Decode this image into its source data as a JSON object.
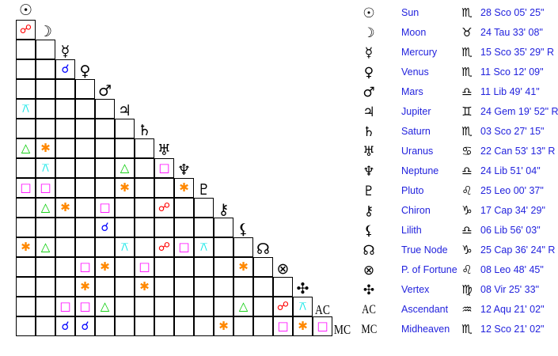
{
  "bodies": [
    {
      "name": "Sun",
      "symbol": "☉",
      "sign": "♏",
      "position": "28 Sco 05' 25\""
    },
    {
      "name": "Moon",
      "symbol": "☽",
      "sign": "♉",
      "position": "24 Tau 33' 08\""
    },
    {
      "name": "Mercury",
      "symbol": "☿",
      "sign": "♏",
      "position": "15 Sco 35' 29\" R"
    },
    {
      "name": "Venus",
      "symbol": "♀",
      "sign": "♏",
      "position": "11 Sco 12' 09\""
    },
    {
      "name": "Mars",
      "symbol": "♂",
      "sign": "♎",
      "position": "11 Lib 49' 41\""
    },
    {
      "name": "Jupiter",
      "symbol": "♃",
      "sign": "♊",
      "position": "24 Gem 19' 52\" R"
    },
    {
      "name": "Saturn",
      "symbol": "♄",
      "sign": "♏",
      "position": "03 Sco 27' 15\""
    },
    {
      "name": "Uranus",
      "symbol": "♅",
      "sign": "♋",
      "position": "22 Can 53' 13\" R"
    },
    {
      "name": "Neptune",
      "symbol": "♆",
      "sign": "♎",
      "position": "24 Lib 51' 04\""
    },
    {
      "name": "Pluto",
      "symbol": "♇",
      "sign": "♌",
      "position": "25 Leo 00' 37\""
    },
    {
      "name": "Chiron",
      "symbol": "⚷",
      "sign": "♑",
      "position": "17 Cap 34' 29\""
    },
    {
      "name": "Lilith",
      "symbol": "⚸",
      "sign": "♎",
      "position": "06 Lib 56' 03\""
    },
    {
      "name": "True Node",
      "symbol": "☊",
      "sign": "♑",
      "position": "25 Cap 36' 24\" R"
    },
    {
      "name": "P. of Fortune",
      "symbol": "⊗",
      "sign": "♌",
      "position": "08 Leo 48' 45\""
    },
    {
      "name": "Vertex",
      "symbol": "✣",
      "sign": "♍",
      "position": "08 Vir 25' 33\""
    },
    {
      "name": "Ascendant",
      "symbol": "AC",
      "sign": "♒",
      "position": "12 Aqu 21' 02\""
    },
    {
      "name": "Midheaven",
      "symbol": "MC",
      "sign": "♏",
      "position": "12 Sco 21' 02\""
    }
  ],
  "aspect_types": {
    "opposition": {
      "glyph": "☍",
      "color": "#ff0000"
    },
    "conjunction": {
      "glyph": "☌",
      "color": "#0000ff"
    },
    "trine": {
      "glyph": "△",
      "color": "#00cc00"
    },
    "square": {
      "glyph": "□",
      "color": "#ff00ff"
    },
    "sextile": {
      "glyph": "✱",
      "color": "#ff8800"
    },
    "quincunx": {
      "glyph": "⚻",
      "color": "#00e5e5"
    }
  },
  "aspects": [
    {
      "a": "Moon",
      "b": "Sun",
      "type": "opposition"
    },
    {
      "a": "Venus",
      "b": "Mercury",
      "type": "conjunction"
    },
    {
      "a": "Jupiter",
      "b": "Sun",
      "type": "quincunx"
    },
    {
      "a": "Uranus",
      "b": "Sun",
      "type": "trine"
    },
    {
      "a": "Uranus",
      "b": "Moon",
      "type": "sextile"
    },
    {
      "a": "Neptune",
      "b": "Moon",
      "type": "quincunx"
    },
    {
      "a": "Neptune",
      "b": "Jupiter",
      "type": "trine"
    },
    {
      "a": "Neptune",
      "b": "Uranus",
      "type": "square"
    },
    {
      "a": "Pluto",
      "b": "Sun",
      "type": "square"
    },
    {
      "a": "Pluto",
      "b": "Moon",
      "type": "square"
    },
    {
      "a": "Pluto",
      "b": "Jupiter",
      "type": "sextile"
    },
    {
      "a": "Pluto",
      "b": "Neptune",
      "type": "sextile"
    },
    {
      "a": "Chiron",
      "b": "Moon",
      "type": "trine"
    },
    {
      "a": "Chiron",
      "b": "Mercury",
      "type": "sextile"
    },
    {
      "a": "Chiron",
      "b": "Mars",
      "type": "square"
    },
    {
      "a": "Chiron",
      "b": "Uranus",
      "type": "opposition"
    },
    {
      "a": "Lilith",
      "b": "Mars",
      "type": "conjunction"
    },
    {
      "a": "True Node",
      "b": "Sun",
      "type": "sextile"
    },
    {
      "a": "True Node",
      "b": "Moon",
      "type": "trine"
    },
    {
      "a": "True Node",
      "b": "Jupiter",
      "type": "quincunx"
    },
    {
      "a": "True Node",
      "b": "Uranus",
      "type": "opposition"
    },
    {
      "a": "True Node",
      "b": "Neptune",
      "type": "square"
    },
    {
      "a": "True Node",
      "b": "Pluto",
      "type": "quincunx"
    },
    {
      "a": "P. of Fortune",
      "b": "Venus",
      "type": "square"
    },
    {
      "a": "P. of Fortune",
      "b": "Mars",
      "type": "sextile"
    },
    {
      "a": "P. of Fortune",
      "b": "Saturn",
      "type": "square"
    },
    {
      "a": "P. of Fortune",
      "b": "Lilith",
      "type": "sextile"
    },
    {
      "a": "Vertex",
      "b": "Venus",
      "type": "sextile"
    },
    {
      "a": "Vertex",
      "b": "Saturn",
      "type": "sextile"
    },
    {
      "a": "Ascendant",
      "b": "Mercury",
      "type": "square"
    },
    {
      "a": "Ascendant",
      "b": "Venus",
      "type": "square"
    },
    {
      "a": "Ascendant",
      "b": "Mars",
      "type": "trine"
    },
    {
      "a": "Ascendant",
      "b": "Lilith",
      "type": "trine"
    },
    {
      "a": "Ascendant",
      "b": "P. of Fortune",
      "type": "opposition"
    },
    {
      "a": "Ascendant",
      "b": "Vertex",
      "type": "quincunx"
    },
    {
      "a": "Midheaven",
      "b": "Mercury",
      "type": "conjunction"
    },
    {
      "a": "Midheaven",
      "b": "Venus",
      "type": "conjunction"
    },
    {
      "a": "Midheaven",
      "b": "Chiron",
      "type": "sextile"
    },
    {
      "a": "Midheaven",
      "b": "P. of Fortune",
      "type": "square"
    },
    {
      "a": "Midheaven",
      "b": "Vertex",
      "type": "sextile"
    },
    {
      "a": "Midheaven",
      "b": "Ascendant",
      "type": "square"
    }
  ]
}
